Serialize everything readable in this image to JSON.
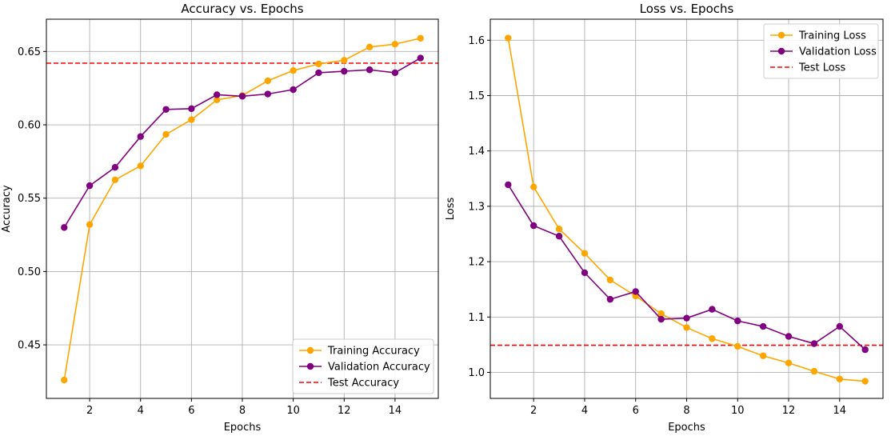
{
  "chart_data": [
    {
      "type": "line",
      "title": "Accuracy vs. Epochs",
      "xlabel": "Epochs",
      "ylabel": "Accuracy",
      "xlim": [
        0.3,
        15.7
      ],
      "ylim": [
        0.4135,
        0.672
      ],
      "xticks": [
        2,
        4,
        6,
        8,
        10,
        12,
        14
      ],
      "xtick_labels": [
        "2",
        "4",
        "6",
        "8",
        "10",
        "12",
        "14"
      ],
      "yticks": [
        0.45,
        0.5,
        0.55,
        0.6,
        0.65
      ],
      "ytick_labels": [
        "0.45",
        "0.50",
        "0.55",
        "0.60",
        "0.65"
      ],
      "grid": true,
      "legend_position": "lower-right",
      "x": [
        1,
        2,
        3,
        4,
        5,
        6,
        7,
        8,
        9,
        10,
        11,
        12,
        13,
        14,
        15
      ],
      "series": [
        {
          "name": "Training Accuracy",
          "color": "#ffa500",
          "marker": "circle",
          "values": [
            0.426,
            0.532,
            0.5625,
            0.572,
            0.5935,
            0.6035,
            0.617,
            0.62,
            0.63,
            0.637,
            0.6415,
            0.644,
            0.653,
            0.655,
            0.659
          ]
        },
        {
          "name": "Validation Accuracy",
          "color": "#800080",
          "marker": "circle",
          "values": [
            0.53,
            0.5585,
            0.571,
            0.592,
            0.6105,
            0.611,
            0.6205,
            0.6195,
            0.621,
            0.624,
            0.6355,
            0.6365,
            0.6375,
            0.6355,
            0.6455
          ]
        }
      ],
      "reference_lines": [
        {
          "name": "Test Accuracy",
          "color": "#ff0000",
          "style": "dashed",
          "value": 0.642
        }
      ]
    },
    {
      "type": "line",
      "title": "Loss vs. Epochs",
      "xlabel": "Epochs",
      "ylabel": "Loss",
      "xlim": [
        0.3,
        15.7
      ],
      "ylim": [
        0.953,
        1.638
      ],
      "xticks": [
        2,
        4,
        6,
        8,
        10,
        12,
        14
      ],
      "xtick_labels": [
        "2",
        "4",
        "6",
        "8",
        "10",
        "12",
        "14"
      ],
      "yticks": [
        1.0,
        1.1,
        1.2,
        1.3,
        1.4,
        1.5,
        1.6
      ],
      "ytick_labels": [
        "1.0",
        "1.1",
        "1.2",
        "1.3",
        "1.4",
        "1.5",
        "1.6"
      ],
      "grid": true,
      "legend_position": "upper-right",
      "x": [
        1,
        2,
        3,
        4,
        5,
        6,
        7,
        8,
        9,
        10,
        11,
        12,
        13,
        14,
        15
      ],
      "series": [
        {
          "name": "Training Loss",
          "color": "#ffa500",
          "marker": "circle",
          "values": [
            1.604,
            1.335,
            1.259,
            1.215,
            1.167,
            1.138,
            1.106,
            1.081,
            1.061,
            1.047,
            1.03,
            1.017,
            1.002,
            0.988,
            0.984
          ]
        },
        {
          "name": "Validation Loss",
          "color": "#800080",
          "marker": "circle",
          "values": [
            1.339,
            1.265,
            1.246,
            1.18,
            1.132,
            1.146,
            1.096,
            1.098,
            1.114,
            1.093,
            1.083,
            1.065,
            1.052,
            1.083,
            1.041
          ]
        }
      ],
      "reference_lines": [
        {
          "name": "Test Loss",
          "color": "#ff0000",
          "style": "dashed",
          "value": 1.049
        }
      ]
    }
  ]
}
